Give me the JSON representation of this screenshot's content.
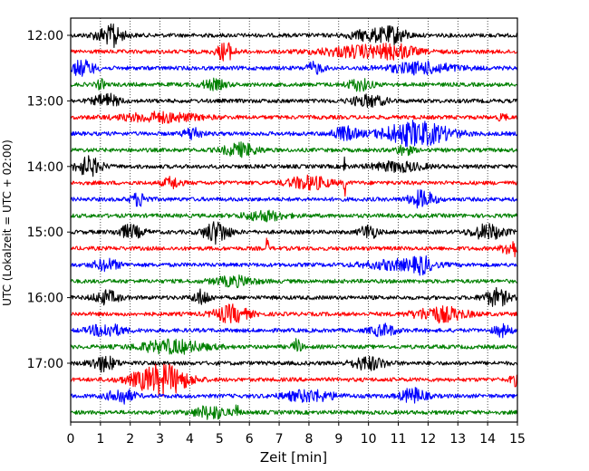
{
  "chart_data": {
    "type": "line",
    "subtype": "helicorder-seismogram",
    "xlabel": "Zeit  [min]",
    "ylabel": "UTC (Lokalzeit = UTC + 02:00)",
    "xlim": [
      0,
      15
    ],
    "x_ticks": [
      0,
      1,
      2,
      3,
      4,
      5,
      6,
      7,
      8,
      9,
      10,
      11,
      12,
      13,
      14,
      15
    ],
    "x_tick_labels": [
      "0",
      "1",
      "2",
      "3",
      "4",
      "5",
      "6",
      "7",
      "8",
      "9",
      "10",
      "11",
      "12",
      "13",
      "14",
      "15"
    ],
    "y_tick_labels": [
      "12:00",
      "13:00",
      "14:00",
      "15:00",
      "16:00",
      "17:00"
    ],
    "grid": "vertical-dotted",
    "trace_minutes": 15,
    "start_time": "12:00",
    "color_cycle": [
      "#000000",
      "#ff0000",
      "#0000ff",
      "#008000"
    ],
    "traces": [
      {
        "start": "12:00",
        "color": "#000000",
        "bursts": [
          [
            1.3,
            0.35,
            9
          ],
          [
            1.45,
            0.05,
            12
          ],
          [
            10.1,
            0.5,
            6
          ],
          [
            10.9,
            0.3,
            7
          ]
        ]
      },
      {
        "start": "12:15",
        "color": "#ff0000",
        "bursts": [
          [
            5.2,
            0.2,
            10
          ],
          [
            9.8,
            1.0,
            6
          ],
          [
            11.0,
            0.4,
            5
          ]
        ]
      },
      {
        "start": "12:30",
        "color": "#0000ff",
        "bursts": [
          [
            0.4,
            0.3,
            8
          ],
          [
            8.2,
            0.2,
            6
          ],
          [
            11.8,
            0.8,
            6
          ]
        ]
      },
      {
        "start": "12:45",
        "color": "#008000",
        "bursts": [
          [
            1.0,
            0.1,
            5
          ],
          [
            4.8,
            0.3,
            5
          ],
          [
            9.7,
            0.3,
            6
          ]
        ]
      },
      {
        "start": "13:00",
        "color": "#000000",
        "bursts": [
          [
            1.2,
            0.3,
            7
          ],
          [
            10.0,
            0.4,
            6
          ]
        ]
      },
      {
        "start": "13:15",
        "color": "#ff0000",
        "bursts": [
          [
            3.0,
            0.9,
            5
          ],
          [
            14.5,
            0.1,
            4
          ]
        ]
      },
      {
        "start": "13:30",
        "color": "#0000ff",
        "bursts": [
          [
            4.1,
            0.2,
            7
          ],
          [
            9.2,
            0.3,
            7
          ],
          [
            11.6,
            0.8,
            13
          ]
        ]
      },
      {
        "start": "13:45",
        "color": "#008000",
        "bursts": [
          [
            5.7,
            0.4,
            7
          ],
          [
            11.2,
            0.2,
            5
          ]
        ]
      },
      {
        "start": "14:00",
        "color": "#000000",
        "bursts": [
          [
            0.6,
            0.3,
            10
          ],
          [
            9.2,
            0.02,
            14
          ],
          [
            11.0,
            0.6,
            5
          ]
        ]
      },
      {
        "start": "14:15",
        "color": "#ff0000",
        "bursts": [
          [
            3.4,
            0.2,
            6
          ],
          [
            8.0,
            0.5,
            7
          ],
          [
            9.2,
            0.03,
            14
          ]
        ]
      },
      {
        "start": "14:30",
        "color": "#0000ff",
        "bursts": [
          [
            2.3,
            0.2,
            7
          ],
          [
            11.8,
            0.3,
            9
          ]
        ]
      },
      {
        "start": "14:45",
        "color": "#008000",
        "bursts": [
          [
            6.5,
            0.5,
            5
          ]
        ]
      },
      {
        "start": "15:00",
        "color": "#000000",
        "bursts": [
          [
            2.0,
            0.3,
            7
          ],
          [
            4.9,
            0.3,
            12
          ],
          [
            10.0,
            0.2,
            8
          ],
          [
            14.0,
            0.4,
            8
          ]
        ]
      },
      {
        "start": "15:15",
        "color": "#ff0000",
        "bursts": [
          [
            6.6,
            0.03,
            12
          ],
          [
            14.8,
            0.2,
            9
          ]
        ]
      },
      {
        "start": "15:30",
        "color": "#0000ff",
        "bursts": [
          [
            1.2,
            0.3,
            6
          ],
          [
            11.0,
            0.8,
            5
          ],
          [
            11.8,
            0.2,
            7
          ]
        ]
      },
      {
        "start": "15:45",
        "color": "#008000",
        "bursts": [
          [
            5.5,
            0.5,
            5
          ]
        ]
      },
      {
        "start": "16:00",
        "color": "#000000",
        "bursts": [
          [
            1.2,
            0.3,
            7
          ],
          [
            4.4,
            0.2,
            8
          ],
          [
            14.3,
            0.3,
            9
          ]
        ]
      },
      {
        "start": "16:15",
        "color": "#ff0000",
        "bursts": [
          [
            5.4,
            0.4,
            9
          ],
          [
            12.4,
            0.6,
            8
          ]
        ]
      },
      {
        "start": "16:30",
        "color": "#0000ff",
        "bursts": [
          [
            1.2,
            0.4,
            7
          ],
          [
            10.5,
            0.3,
            6
          ],
          [
            14.5,
            0.2,
            6
          ]
        ]
      },
      {
        "start": "16:45",
        "color": "#008000",
        "bursts": [
          [
            3.4,
            0.8,
            7
          ],
          [
            7.6,
            0.1,
            8
          ]
        ]
      },
      {
        "start": "17:00",
        "color": "#000000",
        "bursts": [
          [
            1.1,
            0.3,
            8
          ],
          [
            10.0,
            0.4,
            7
          ]
        ]
      },
      {
        "start": "17:15",
        "color": "#ff0000",
        "bursts": [
          [
            2.8,
            0.6,
            11
          ],
          [
            3.4,
            0.5,
            8
          ],
          [
            14.9,
            0.1,
            6
          ]
        ]
      },
      {
        "start": "17:30",
        "color": "#0000ff",
        "bursts": [
          [
            1.7,
            0.3,
            8
          ],
          [
            8.0,
            0.6,
            6
          ],
          [
            11.5,
            0.3,
            8
          ]
        ]
      },
      {
        "start": "17:45",
        "color": "#008000",
        "bursts": [
          [
            4.7,
            0.4,
            7
          ],
          [
            5.6,
            0.05,
            11
          ]
        ]
      }
    ]
  }
}
